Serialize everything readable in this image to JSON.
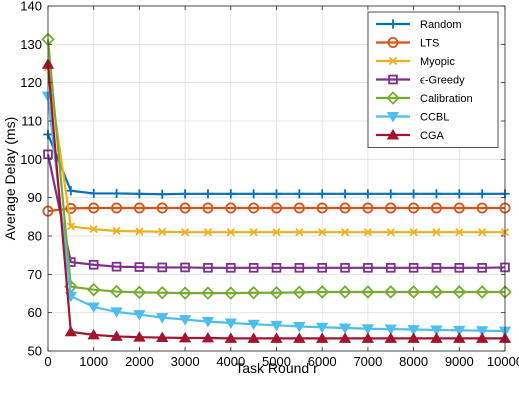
{
  "chart_data": {
    "type": "line",
    "title": "",
    "xlabel": "Task Round r",
    "ylabel": "Average Delay (ms)",
    "xlim": [
      0,
      10000
    ],
    "ylim": [
      50,
      140
    ],
    "x_ticks": [
      0,
      1000,
      2000,
      3000,
      4000,
      5000,
      6000,
      7000,
      8000,
      9000,
      10000
    ],
    "x_tick_labels": [
      "0",
      "1000",
      "2000",
      "3000",
      "4000",
      "5000",
      "6000",
      "7000",
      "8000",
      "9000",
      "10000"
    ],
    "y_ticks": [
      50,
      60,
      70,
      80,
      90,
      100,
      110,
      120,
      130,
      140
    ],
    "y_tick_labels": [
      "50",
      "60",
      "70",
      "80",
      "90",
      "100",
      "110",
      "120",
      "130",
      "140"
    ],
    "grid": true,
    "legend_position": "top-right",
    "x": [
      0,
      500,
      1000,
      1500,
      2000,
      2500,
      3000,
      3500,
      4000,
      4500,
      5000,
      5500,
      6000,
      6500,
      7000,
      7500,
      8000,
      8500,
      9000,
      9500,
      10000
    ],
    "series": [
      {
        "name": "Random",
        "color": "#0072BD",
        "marker": "plus",
        "values": [
          106.5,
          91.8,
          91.1,
          91.1,
          91.0,
          90.9,
          91.0,
          91.0,
          91.0,
          91.0,
          91.0,
          91.0,
          91.0,
          91.0,
          91.0,
          91.0,
          91.0,
          91.0,
          91.0,
          91.0,
          91.0
        ]
      },
      {
        "name": "LTS",
        "color": "#D95319",
        "marker": "circle",
        "values": [
          86.5,
          87.2,
          87.3,
          87.3,
          87.3,
          87.3,
          87.3,
          87.3,
          87.3,
          87.3,
          87.3,
          87.3,
          87.3,
          87.3,
          87.3,
          87.3,
          87.3,
          87.3,
          87.3,
          87.3,
          87.3
        ]
      },
      {
        "name": "Myopic",
        "color": "#EDB120",
        "marker": "x",
        "values": [
          124.0,
          82.5,
          81.8,
          81.3,
          81.2,
          81.1,
          81.0,
          81.0,
          81.0,
          81.0,
          81.0,
          81.0,
          81.0,
          81.0,
          81.0,
          81.0,
          81.0,
          81.0,
          81.0,
          81.0,
          81.0
        ]
      },
      {
        "name": "ϵ-Greedy",
        "color": "#7E2F8E",
        "marker": "square",
        "values": [
          101.3,
          73.2,
          72.5,
          72.0,
          71.9,
          71.8,
          71.8,
          71.7,
          71.7,
          71.7,
          71.7,
          71.7,
          71.7,
          71.7,
          71.7,
          71.7,
          71.7,
          71.7,
          71.7,
          71.7,
          71.8
        ]
      },
      {
        "name": "Calibration",
        "color": "#77AC30",
        "marker": "diamond",
        "values": [
          131.3,
          66.8,
          66.0,
          65.5,
          65.3,
          65.2,
          65.1,
          65.1,
          65.1,
          65.2,
          65.2,
          65.3,
          65.4,
          65.4,
          65.4,
          65.4,
          65.4,
          65.4,
          65.4,
          65.4,
          65.4
        ]
      },
      {
        "name": "CCBL",
        "color": "#4DBEEE",
        "marker": "triangle-down",
        "values": [
          116.5,
          64.3,
          61.5,
          60.2,
          59.5,
          58.7,
          58.2,
          57.7,
          57.3,
          57.0,
          56.7,
          56.4,
          56.2,
          56.0,
          55.8,
          55.7,
          55.6,
          55.5,
          55.4,
          55.3,
          55.2
        ]
      },
      {
        "name": "CGA",
        "color": "#A2142F",
        "marker": "triangle-up",
        "values": [
          124.8,
          55.0,
          54.2,
          53.8,
          53.6,
          53.5,
          53.4,
          53.4,
          53.3,
          53.3,
          53.3,
          53.3,
          53.3,
          53.3,
          53.3,
          53.3,
          53.3,
          53.3,
          53.3,
          53.3,
          53.3
        ]
      }
    ]
  }
}
